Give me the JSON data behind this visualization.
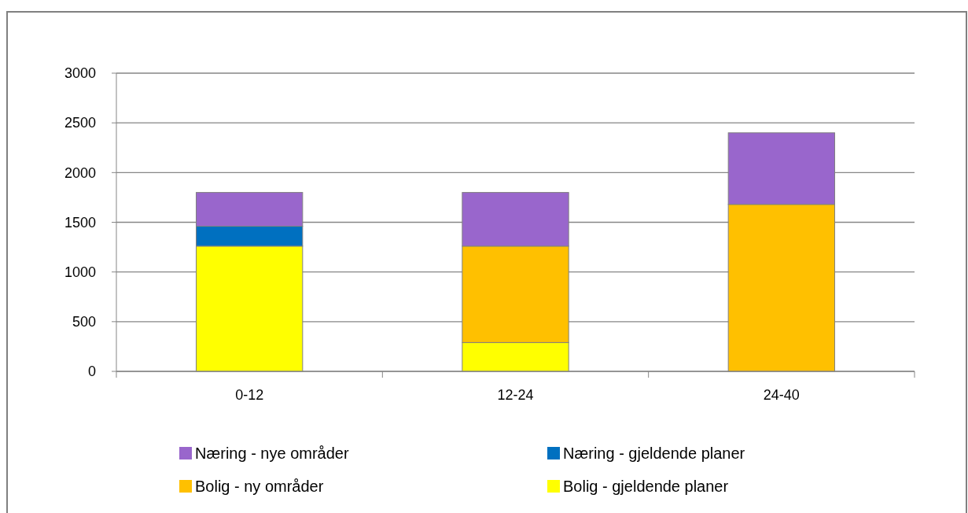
{
  "chart_data": {
    "type": "bar",
    "stacked": true,
    "categories": [
      "0-12",
      "12-24",
      "24-40"
    ],
    "series": [
      {
        "name": "Bolig - gjeldende planer",
        "color": "#ffff00",
        "values": [
          1260,
          290,
          null
        ]
      },
      {
        "name": "Bolig - ny områder",
        "color": "#ffc000",
        "values": [
          null,
          970,
          1680
        ]
      },
      {
        "name": "Næring - gjeldende planer",
        "color": "#0070c0",
        "values": [
          200,
          null,
          null
        ]
      },
      {
        "name": "Næring - nye områder",
        "color": "#9966cc",
        "values": [
          340,
          540,
          720
        ]
      }
    ],
    "ylim": [
      0,
      3000
    ],
    "yticks": [
      0,
      500,
      1000,
      1500,
      2000,
      2500,
      3000
    ],
    "grid": "y",
    "legend": "bottom"
  }
}
